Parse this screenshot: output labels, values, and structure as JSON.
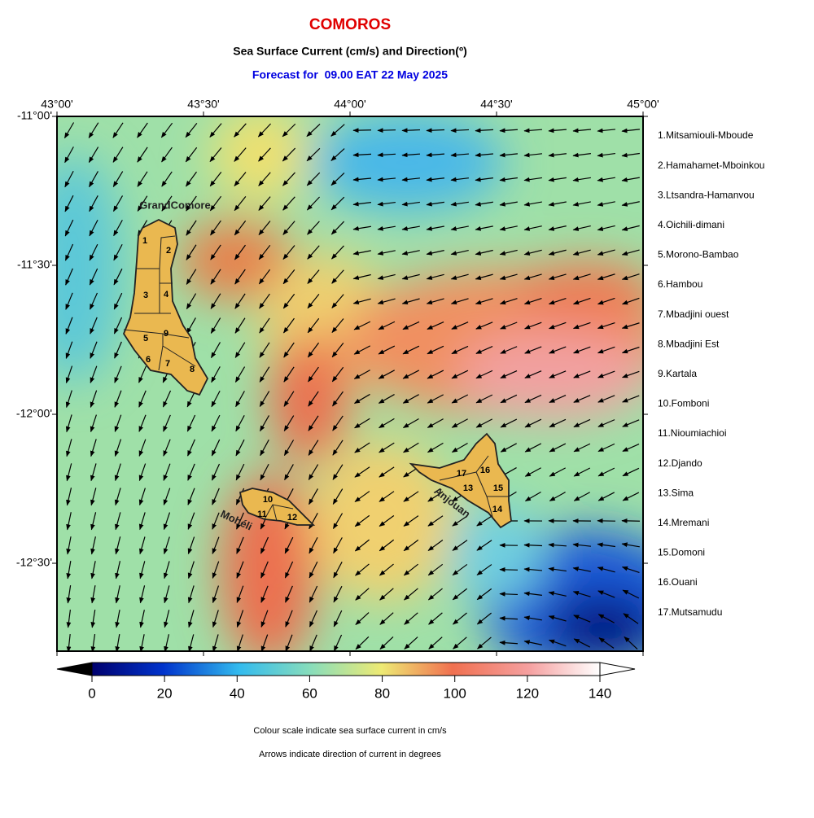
{
  "header": {
    "title": "COMOROS",
    "subtitle": "Sea Surface Current (cm/s) and Direction(º)",
    "forecast": "Forecast for  09.00 EAT 22 May 2025"
  },
  "map": {
    "xlim": [
      43,
      45
    ],
    "ylim": [
      -11,
      -12.795
    ],
    "xticks": [
      {
        "value": 43,
        "label": "43°00'"
      },
      {
        "value": 43.5,
        "label": "43°30'"
      },
      {
        "value": 44,
        "label": "44°00'"
      },
      {
        "value": 44.5,
        "label": "44°30'"
      },
      {
        "value": 45,
        "label": "45°00'"
      }
    ],
    "yticks": [
      {
        "value": -11,
        "label": "-11°00'"
      },
      {
        "value": -11.5,
        "label": "-11°30'"
      },
      {
        "value": -12,
        "label": "-12°00'"
      },
      {
        "value": -12.5,
        "label": "-12°30'"
      }
    ],
    "islands": [
      "GrandComore",
      "Mohéli",
      "Anjouan"
    ],
    "markers": [
      "1",
      "2",
      "3",
      "4",
      "5",
      "6",
      "7",
      "8",
      "9",
      "10",
      "11",
      "12",
      "13",
      "14",
      "15",
      "16",
      "17"
    ]
  },
  "districts": [
    "1.Mitsamiouli-Mboude",
    "2.Hamahamet-Mboinkou",
    "3.Ltsandra-Hamanvou",
    "4.Oichili-dimani",
    "5.Morono-Bambao",
    "6.Hambou",
    "7.Mbadjini ouest",
    "8.Mbadjini Est",
    "9.Kartala",
    "10.Fomboni",
    "11.Nioumiachioi",
    "12.Djando",
    "13.Sima",
    "14.Mremani",
    "15.Domoni",
    "16.Ouani",
    "17.Mutsamudu"
  ],
  "colorbar": {
    "range": [
      0,
      140
    ],
    "ticks": [
      0,
      20,
      40,
      60,
      80,
      100,
      120,
      140
    ]
  },
  "notes": [
    "Colour scale indicate sea surface current in cm/s",
    "Arrows indicate direction of current in degrees"
  ]
}
